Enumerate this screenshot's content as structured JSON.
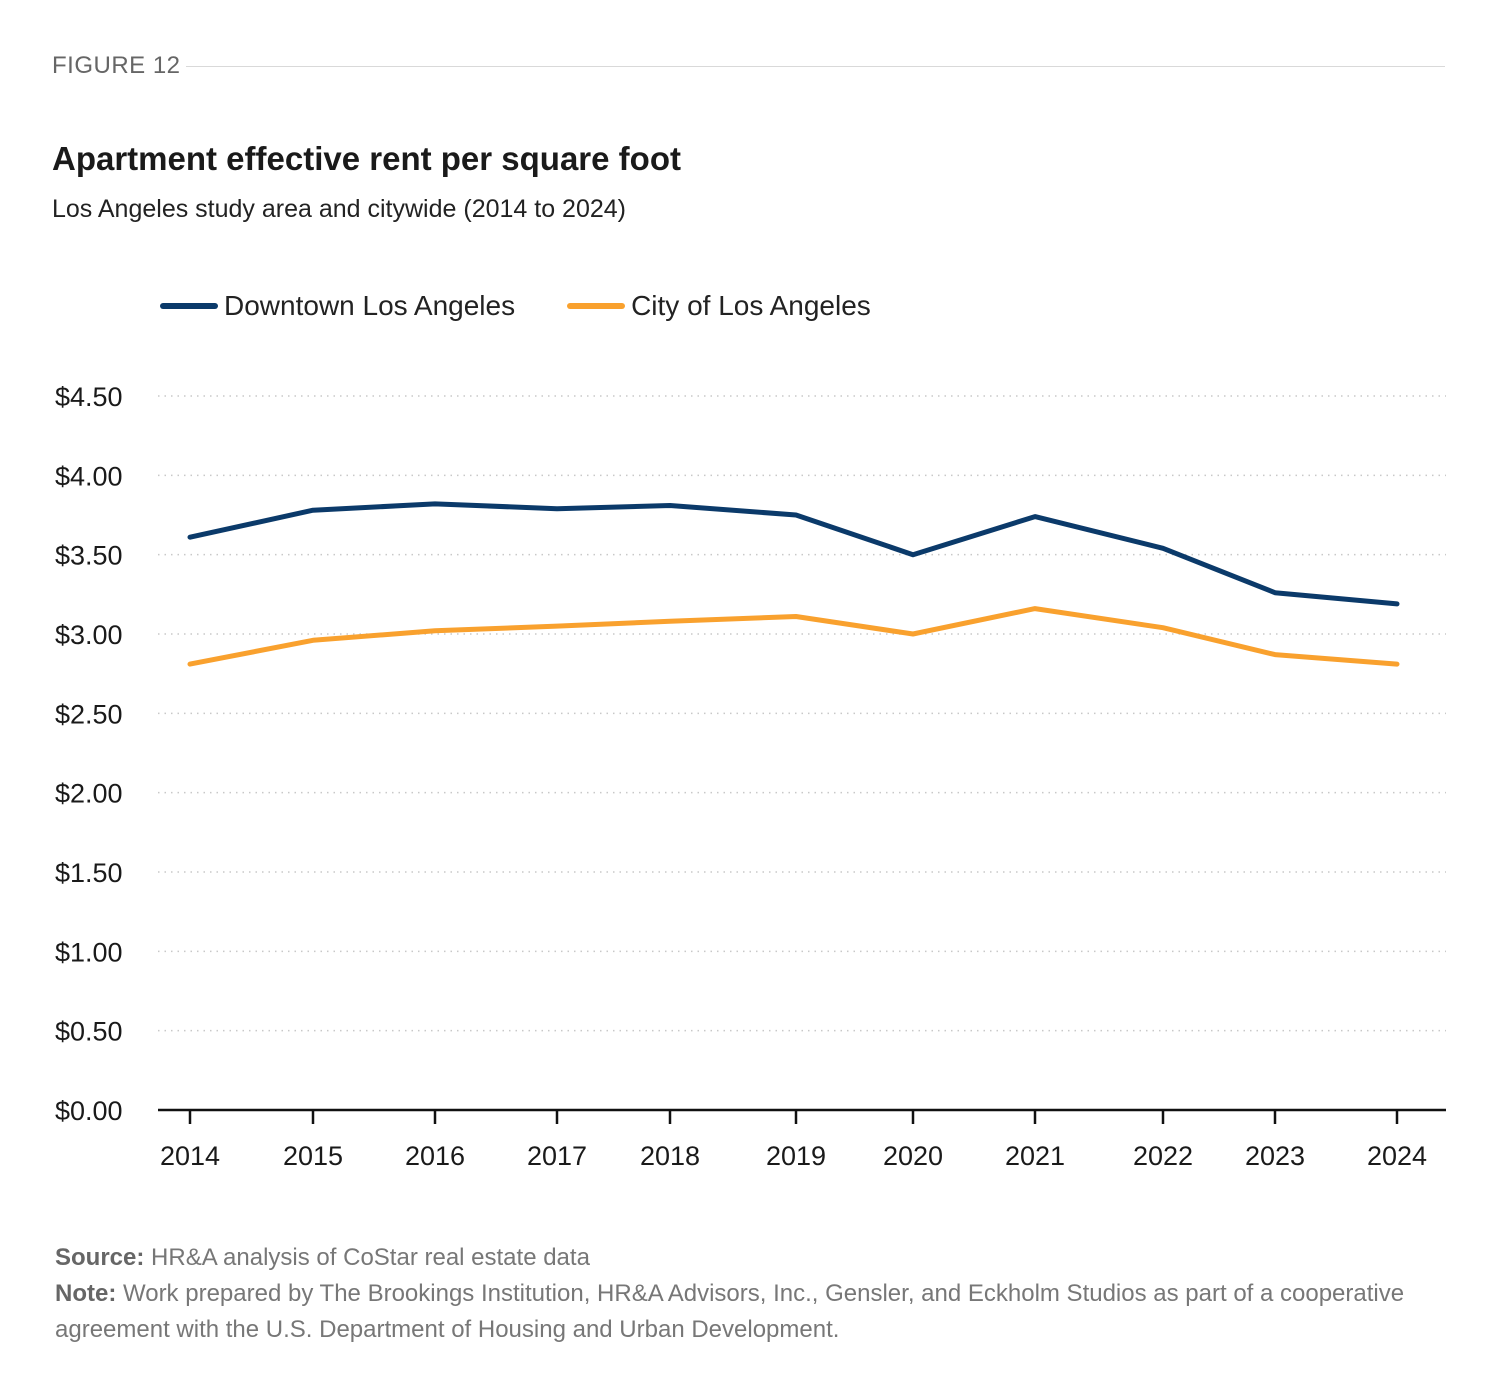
{
  "figure_label": "FIGURE 12",
  "chart_data": {
    "type": "line",
    "title": "Apartment effective rent per square foot",
    "subtitle": "Los Angeles study area and citywide (2014 to 2024)",
    "xlabel": "",
    "ylabel": "",
    "x": [
      "2014",
      "2015",
      "2016",
      "2017",
      "2018",
      "2019",
      "2020",
      "2021",
      "2022",
      "2023",
      "2024"
    ],
    "ylim": [
      0,
      4.5
    ],
    "yticks": [
      0,
      0.5,
      1.0,
      1.5,
      2.0,
      2.5,
      3.0,
      3.5,
      4.0,
      4.5
    ],
    "ytick_labels": [
      "$0.00",
      "$0.50",
      "$1.00",
      "$1.50",
      "$2.00",
      "$2.50",
      "$3.00",
      "$3.50",
      "$4.00",
      "$4.50"
    ],
    "grid": "horizontal dotted",
    "legend_position": "top-left",
    "series": [
      {
        "name": "Downtown Los Angeles",
        "color": "#0b3a6a",
        "values": [
          3.61,
          3.78,
          3.82,
          3.79,
          3.81,
          3.75,
          3.5,
          3.74,
          3.54,
          3.26,
          3.19
        ]
      },
      {
        "name": "City of Los Angeles",
        "color": "#f9a12e",
        "values": [
          2.81,
          2.96,
          3.02,
          3.05,
          3.08,
          3.11,
          3.0,
          3.16,
          3.04,
          2.87,
          2.81
        ]
      }
    ]
  },
  "footer": {
    "source_label": "Source:",
    "source_text": "HR&A analysis of CoStar real estate data",
    "note_label": "Note:",
    "note_text": "Work prepared by The Brookings Institution, HR&A Advisors, Inc., Gensler, and Eckholm Studios as part of a cooperative agreement with the U.S. Department of Housing and Urban Development."
  }
}
